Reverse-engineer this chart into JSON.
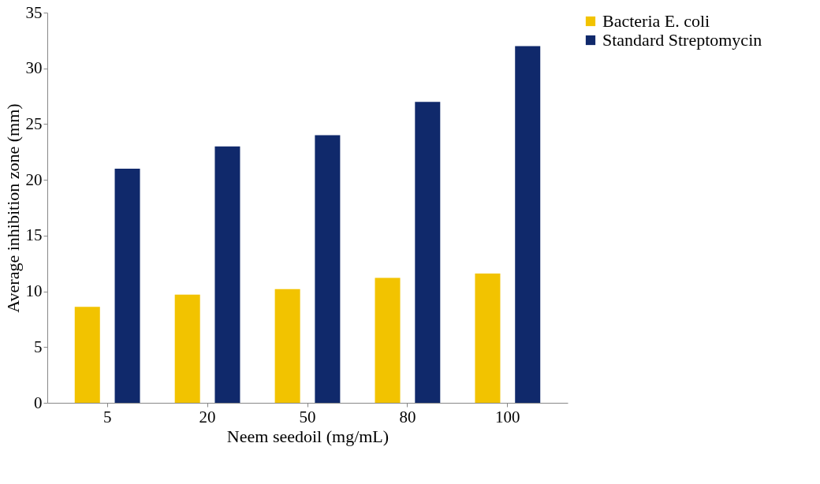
{
  "chart_data": {
    "type": "bar",
    "xlabel": "Neem seedoil (mg/mL)",
    "ylabel": "Average inhibition zone (mm)",
    "categories": [
      "5",
      "20",
      "50",
      "80",
      "100"
    ],
    "series": [
      {
        "name": "Bacteria E. coli",
        "color": "#f2c300",
        "values": [
          8.6,
          9.7,
          10.2,
          11.2,
          11.6
        ]
      },
      {
        "name": "Standard Streptomycin",
        "color": "#10296b",
        "values": [
          21,
          23,
          24,
          27,
          32
        ]
      }
    ],
    "ylim": [
      0,
      35
    ],
    "yticks": [
      0,
      5,
      10,
      15,
      20,
      25,
      30,
      35
    ],
    "grid": false,
    "legend": "right"
  }
}
